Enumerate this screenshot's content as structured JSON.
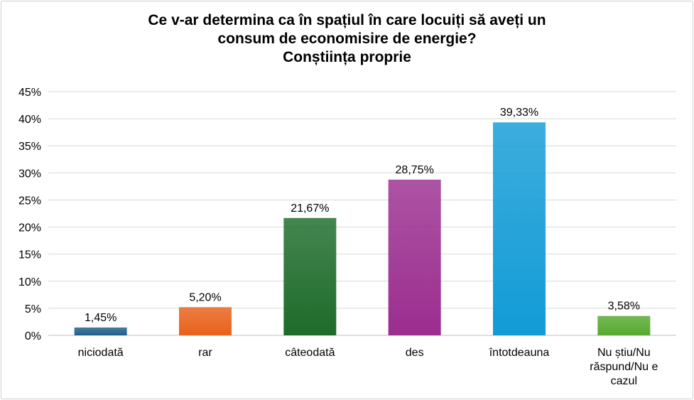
{
  "chart_data": {
    "type": "bar",
    "title_lines": [
      "Ce v-ar determina ca în spațiul în care locuiți să aveți un",
      "consum de economisire de energie?",
      "Conștiința proprie"
    ],
    "categories": [
      [
        "niciodată"
      ],
      [
        "rar"
      ],
      [
        "câteodată"
      ],
      [
        "des"
      ],
      [
        "întotdeauna"
      ],
      [
        "Nu știu/Nu",
        "răspund/Nu e",
        "cazul"
      ]
    ],
    "values": [
      1.45,
      5.2,
      21.67,
      28.75,
      39.33,
      3.58
    ],
    "value_labels": [
      "1,45%",
      "5,20%",
      "21,67%",
      "28,75%",
      "39,33%",
      "3,58%"
    ],
    "colors": [
      "#1f5f8b",
      "#e8611a",
      "#1d6b2a",
      "#9b2d8f",
      "#129bd6",
      "#56a92f"
    ],
    "ylim": [
      0,
      45
    ],
    "yticks": [
      "0%",
      "5%",
      "10%",
      "15%",
      "20%",
      "25%",
      "30%",
      "35%",
      "40%",
      "45%"
    ],
    "grid": true,
    "xlabel": "",
    "ylabel": ""
  }
}
